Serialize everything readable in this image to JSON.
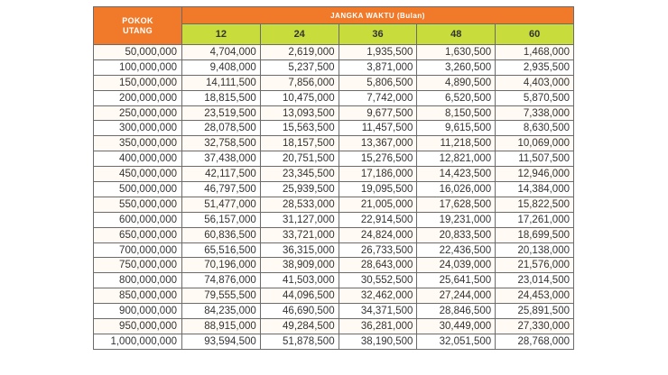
{
  "table": {
    "pokok_header_line1": "POKOK",
    "pokok_header_line2": "UTANG",
    "term_header": "JANGKA WAKTU (Bulan)",
    "months": [
      "12",
      "24",
      "36",
      "48",
      "60"
    ],
    "rows": [
      [
        "50,000,000",
        "4,704,000",
        "2,619,000",
        "1,935,500",
        "1,630,500",
        "1,468,000"
      ],
      [
        "100,000,000",
        "9,408,000",
        "5,237,500",
        "3,871,000",
        "3,260,500",
        "2,935,500"
      ],
      [
        "150,000,000",
        "14,111,500",
        "7,856,000",
        "5,806,500",
        "4,890,500",
        "4,403,000"
      ],
      [
        "200,000,000",
        "18,815,500",
        "10,475,000",
        "7,742,000",
        "6,520,500",
        "5,870,500"
      ],
      [
        "250,000,000",
        "23,519,500",
        "13,093,500",
        "9,677,500",
        "8,150,500",
        "7,338,000"
      ],
      [
        "300,000,000",
        "28,078,500",
        "15,563,500",
        "11,457,500",
        "9,615,500",
        "8,630,500"
      ],
      [
        "350,000,000",
        "32,758,500",
        "18,157,500",
        "13,367,000",
        "11,218,500",
        "10,069,000"
      ],
      [
        "400,000,000",
        "37,438,000",
        "20,751,500",
        "15,276,500",
        "12,821,000",
        "11,507,500"
      ],
      [
        "450,000,000",
        "42,117,500",
        "23,345,500",
        "17,186,000",
        "14,423,500",
        "12,946,000"
      ],
      [
        "500,000,000",
        "46,797,500",
        "25,939,500",
        "19,095,500",
        "16,026,000",
        "14,384,000"
      ],
      [
        "550,000,000",
        "51,477,000",
        "28,533,000",
        "21,005,000",
        "17,628,500",
        "15,822,500"
      ],
      [
        "600,000,000",
        "56,157,000",
        "31,127,000",
        "22,914,500",
        "19,231,000",
        "17,261,000"
      ],
      [
        "650,000,000",
        "60,836,500",
        "33,721,000",
        "24,824,000",
        "20,833,500",
        "18,699,500"
      ],
      [
        "700,000,000",
        "65,516,500",
        "36,315,000",
        "26,733,500",
        "22,436,500",
        "20,138,000"
      ],
      [
        "750,000,000",
        "70,196,000",
        "38,909,000",
        "28,643,000",
        "24,039,000",
        "21,576,000"
      ],
      [
        "800,000,000",
        "74,876,000",
        "41,503,000",
        "30,552,500",
        "25,641,500",
        "23,014,500"
      ],
      [
        "850,000,000",
        "79,555,500",
        "44,096,500",
        "32,462,000",
        "27,244,000",
        "24,453,000"
      ],
      [
        "900,000,000",
        "84,235,000",
        "46,690,500",
        "34,371,500",
        "28,846,500",
        "25,891,500"
      ],
      [
        "950,000,000",
        "88,915,000",
        "49,284,500",
        "36,281,000",
        "30,449,000",
        "27,330,000"
      ],
      [
        "1,000,000,000",
        "93,594,500",
        "51,878,500",
        "38,190,500",
        "32,051,500",
        "28,768,000"
      ]
    ]
  }
}
